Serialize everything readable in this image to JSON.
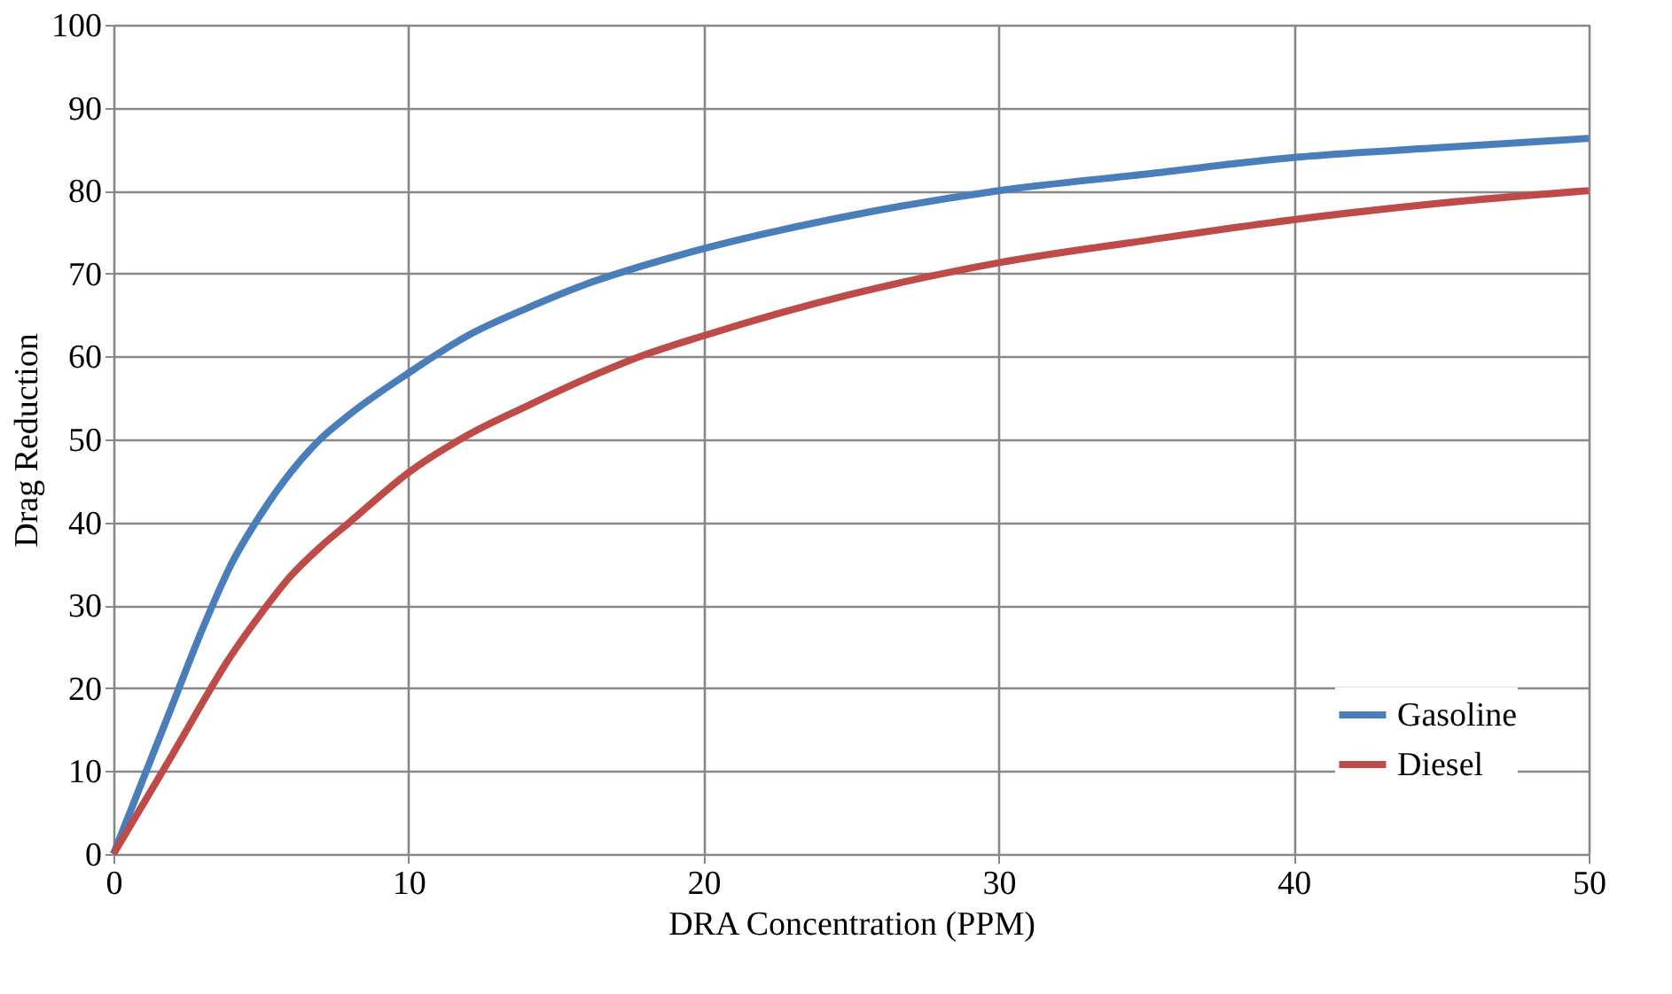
{
  "chart_data": {
    "type": "line",
    "xlabel": "DRA Concentration (PPM)",
    "ylabel": "Drag Reduction",
    "xlim": [
      0,
      50
    ],
    "xticks": [
      0,
      10,
      20,
      30,
      40,
      50
    ],
    "ylim": [
      0,
      100
    ],
    "yticks": [
      0,
      10,
      20,
      30,
      40,
      50,
      60,
      70,
      80,
      90,
      100
    ],
    "grid": true,
    "legend": "bottom right",
    "marker": "none",
    "line_style": "solid",
    "series": [
      {
        "name": "Gasoline",
        "color": "#4a7ebb",
        "x": [
          0,
          2,
          3,
          4,
          5,
          6,
          7,
          8,
          10,
          12,
          14,
          16,
          18,
          20,
          25,
          30,
          35,
          40,
          45,
          50
        ],
        "values": [
          0,
          18,
          27,
          35,
          41,
          46,
          50,
          53,
          58,
          62.5,
          65.8,
          68.7,
          71,
          73,
          77,
          80,
          82,
          84,
          85.2,
          86.3
        ]
      },
      {
        "name": "Diesel",
        "color": "#be4b48",
        "x": [
          0,
          2,
          4,
          5,
          6,
          7,
          8,
          10,
          12,
          14,
          16,
          18,
          20,
          25,
          30,
          35,
          40,
          45,
          50
        ],
        "values": [
          0,
          12,
          24,
          29,
          33.5,
          37,
          40,
          46,
          50.5,
          54,
          57.3,
          60.2,
          62.5,
          67.5,
          71.3,
          74,
          76.5,
          78.5,
          80
        ]
      }
    ]
  }
}
